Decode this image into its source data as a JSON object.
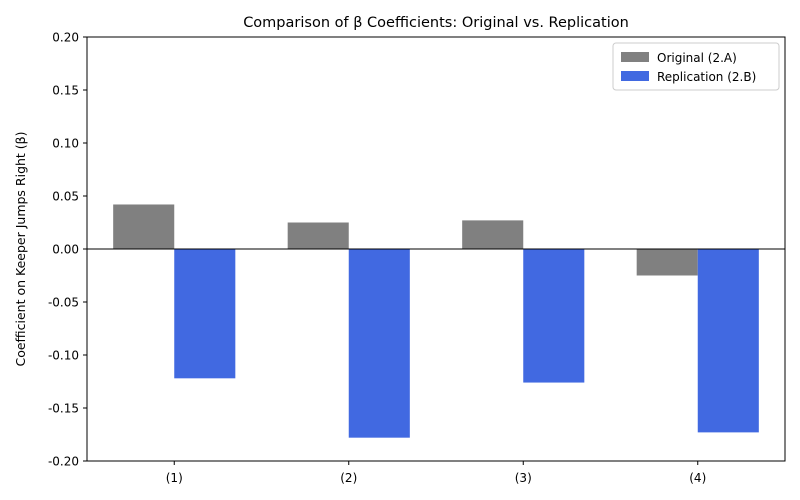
{
  "chart_data": {
    "type": "bar",
    "title": "Comparison of β Coefficients: Original vs. Replication",
    "xlabel": "",
    "ylabel": "Coefficient on Keeper Jumps Right (β)",
    "categories": [
      "(1)",
      "(2)",
      "(3)",
      "(4)"
    ],
    "series": [
      {
        "name": "Original (2.A)",
        "color": "#808080",
        "values": [
          0.042,
          0.025,
          0.027,
          -0.025
        ]
      },
      {
        "name": "Replication (2.B)",
        "color": "#4169e1",
        "values": [
          -0.122,
          -0.178,
          -0.126,
          -0.173
        ]
      }
    ],
    "ylim": [
      -0.2,
      0.2
    ],
    "yticks": [
      "-0.20",
      "-0.15",
      "-0.10",
      "-0.05",
      "0.00",
      "0.05",
      "0.10",
      "0.15",
      "0.20"
    ],
    "grid": false,
    "legend_position": "top-right"
  }
}
